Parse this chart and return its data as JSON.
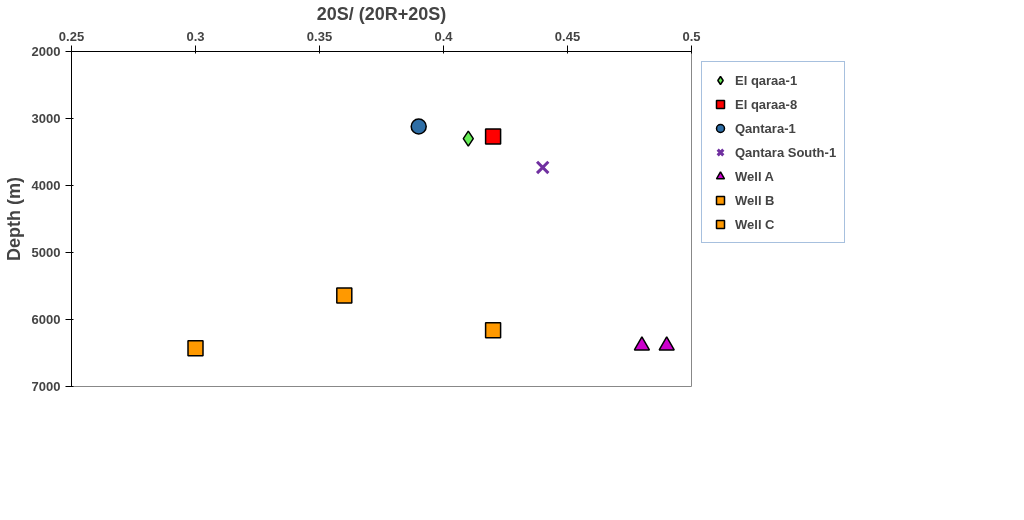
{
  "chart_data": {
    "type": "scatter",
    "xlabel": "20S/ (20R+20S)",
    "ylabel": "Depth (m)",
    "xlim": [
      0.25,
      0.5
    ],
    "xticks": [
      0.25,
      0.3,
      0.35,
      0.4,
      0.45,
      0.5
    ],
    "ylim": [
      7000,
      2000
    ],
    "yticks": [
      2000,
      3000,
      4000,
      5000,
      6000,
      7000
    ],
    "grid": false,
    "legend": "right",
    "series": [
      {
        "name": "El qaraa-1",
        "color": "#66ee55",
        "marker": "diamond",
        "x": [
          0.41
        ],
        "values": [
          3300
        ]
      },
      {
        "name": "El qaraa-8",
        "color": "#ff0000",
        "marker": "square",
        "x": [
          0.42
        ],
        "values": [
          3270
        ]
      },
      {
        "name": "Qantara-1",
        "color": "#2e6ea6",
        "marker": "circle",
        "x": [
          0.39
        ],
        "values": [
          3120
        ]
      },
      {
        "name": "Qantara South-1",
        "color": "#7030a0",
        "marker": "cross",
        "x": [
          0.44
        ],
        "values": [
          3730
        ]
      },
      {
        "name": "Well A",
        "color": "#cc00cc",
        "marker": "triangle",
        "x": [
          0.48,
          0.49
        ],
        "values": [
          6390,
          6390
        ]
      },
      {
        "name": "Well B",
        "color": "#ff9900",
        "marker": "square",
        "x": [
          0.36,
          0.42
        ],
        "values": [
          5640,
          6160
        ]
      },
      {
        "name": "Well C",
        "color": "#ff9900",
        "marker": "square",
        "x": [
          0.3
        ],
        "values": [
          6430
        ]
      }
    ]
  }
}
